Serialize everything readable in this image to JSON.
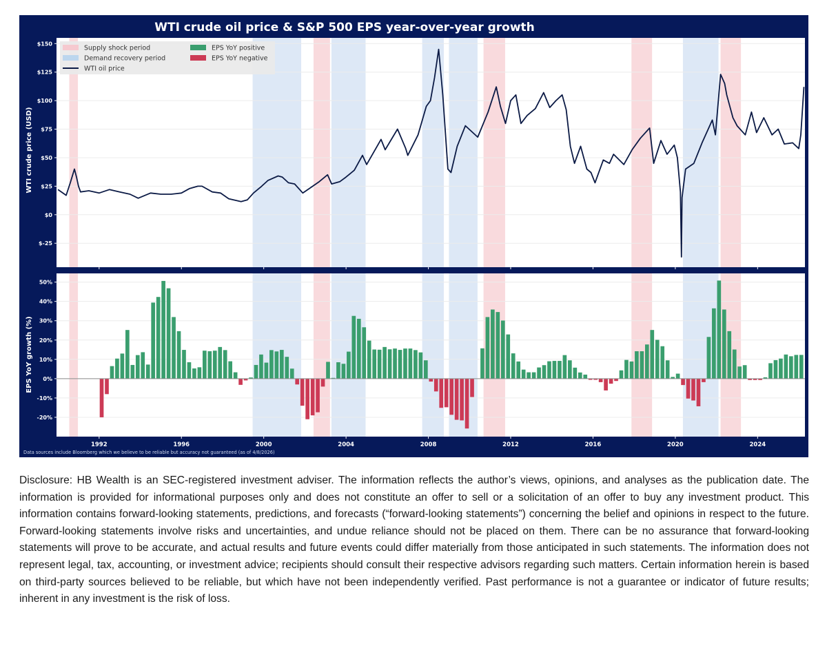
{
  "chart_data": [
    {
      "type": "line",
      "panel": "top",
      "title": "WTI crude oil price & S&P 500 EPS year-over-year growth",
      "ylabel": "WTI crude price (USD)",
      "ylim": [
        -46,
        155
      ],
      "xlim": [
        1989.93,
        2026.3
      ],
      "yticks": [
        150,
        125,
        100,
        75,
        50,
        25,
        0,
        -25
      ],
      "ytick_labels": [
        "$150",
        "$125",
        "$100",
        "$75",
        "$50",
        "$25",
        "$0",
        "$-25"
      ],
      "grid": true,
      "legend_position": "top-left",
      "legend": [
        {
          "label": "Supply shock period",
          "kind": "patch",
          "color": "#f6c9cf"
        },
        {
          "label": "Demand recovery period",
          "kind": "patch",
          "color": "#bcd6ee"
        },
        {
          "label": "WTI oil price",
          "kind": "line",
          "color": "#0b1a45"
        },
        {
          "label": "EPS YoY positive",
          "kind": "patch",
          "color": "#3a9e6e"
        },
        {
          "label": "EPS YoY negative",
          "kind": "patch",
          "color": "#cc3a55"
        }
      ],
      "series": [
        {
          "name": "WTI oil price",
          "color": "#0b1a45",
          "x": [
            1990.0,
            1990.4,
            1990.6,
            1990.8,
            1990.9,
            1991.0,
            1991.1,
            1991.5,
            1992.0,
            1992.5,
            1993.0,
            1993.5,
            1993.9,
            1994.5,
            1995.0,
            1995.5,
            1996.0,
            1996.4,
            1996.8,
            1997.0,
            1997.5,
            1997.9,
            1998.3,
            1998.9,
            1999.2,
            1999.5,
            1999.9,
            2000.2,
            2000.7,
            2000.9,
            2001.2,
            2001.5,
            2001.9,
            2002.3,
            2002.7,
            2003.1,
            2003.3,
            2003.7,
            2004.0,
            2004.4,
            2004.8,
            2005.0,
            2005.7,
            2005.9,
            2006.5,
            2006.9,
            2007.0,
            2007.5,
            2007.9,
            2008.1,
            2008.3,
            2008.5,
            2008.7,
            2008.95,
            2009.1,
            2009.4,
            2009.8,
            2010.4,
            2010.9,
            2011.3,
            2011.5,
            2011.75,
            2012.0,
            2012.25,
            2012.5,
            2012.8,
            2013.2,
            2013.6,
            2013.9,
            2014.2,
            2014.5,
            2014.7,
            2014.9,
            2015.1,
            2015.4,
            2015.7,
            2015.9,
            2016.1,
            2016.5,
            2016.8,
            2017.0,
            2017.5,
            2017.9,
            2018.3,
            2018.75,
            2018.95,
            2019.3,
            2019.6,
            2019.95,
            2020.1,
            2020.25,
            2020.3,
            2020.33,
            2020.5,
            2020.9,
            2021.3,
            2021.8,
            2021.95,
            2022.2,
            2022.4,
            2022.5,
            2022.8,
            2023.0,
            2023.4,
            2023.7,
            2023.95,
            2024.3,
            2024.7,
            2025.0,
            2025.3,
            2025.7,
            2026.0,
            2026.1,
            2026.25
          ],
          "y": [
            22,
            17,
            28,
            40,
            33,
            25,
            20,
            21,
            19,
            22,
            20,
            18,
            14.5,
            19,
            18,
            18,
            19,
            23,
            25,
            25,
            20,
            19,
            14,
            11.5,
            13,
            19,
            25,
            30,
            34,
            33,
            28,
            27,
            19,
            24,
            29,
            35,
            27,
            29,
            33,
            39,
            52,
            44,
            66,
            57,
            75,
            58,
            52,
            70,
            95,
            100,
            120,
            145,
            105,
            40,
            37,
            60,
            78,
            68,
            90,
            112,
            95,
            80,
            100,
            105,
            80,
            87,
            93,
            107,
            94,
            100,
            105,
            92,
            60,
            45,
            60,
            40,
            37,
            28,
            48,
            45,
            53,
            44,
            57,
            67,
            76,
            45,
            65,
            53,
            61,
            50,
            20,
            -37,
            15,
            40,
            45,
            63,
            83,
            70,
            123,
            115,
            105,
            85,
            78,
            70,
            90,
            72,
            85,
            70,
            75,
            62,
            63,
            58,
            70,
            112
          ]
        }
      ],
      "shaded_periods": [
        {
          "type": "Supply shock period",
          "start": 1990.55,
          "end": 1990.97
        },
        {
          "type": "Demand recovery period",
          "start": 1999.46,
          "end": 2001.82
        },
        {
          "type": "Supply shock period",
          "start": 2002.42,
          "end": 2003.22
        },
        {
          "type": "Demand recovery period",
          "start": 2003.29,
          "end": 2004.95
        },
        {
          "type": "Demand recovery period",
          "start": 2007.7,
          "end": 2008.75
        },
        {
          "type": "Demand recovery period",
          "start": 2009.0,
          "end": 2010.39
        },
        {
          "type": "Supply shock period",
          "start": 2010.68,
          "end": 2011.73
        },
        {
          "type": "Supply shock period",
          "start": 2017.87,
          "end": 2018.87
        },
        {
          "type": "Demand recovery period",
          "start": 2020.37,
          "end": 2022.1
        },
        {
          "type": "Supply shock period",
          "start": 2022.2,
          "end": 2023.19
        }
      ]
    },
    {
      "type": "bar",
      "panel": "bottom",
      "ylabel": "EPS YoY growth (%)",
      "ylim": [
        -30,
        54.5
      ],
      "xlim": [
        1989.93,
        2026.3
      ],
      "yticks": [
        50,
        40,
        30,
        20,
        10,
        0,
        -10,
        -20
      ],
      "ytick_labels": [
        "50%",
        "40%",
        "30%",
        "20%",
        "10%",
        "0%",
        "-10%",
        "-20%"
      ],
      "xticks": [
        1992,
        1996,
        2000,
        2004,
        2008,
        2012,
        2016,
        2020,
        2024
      ],
      "xtick_labels": [
        "1992",
        "1996",
        "2000",
        "2004",
        "2008",
        "2012",
        "2016",
        "2020",
        "2024"
      ],
      "grid": true,
      "frequency": "quarterly",
      "x_start": 1992.125,
      "x_step": 0.25,
      "positive_color": "#3a9e6e",
      "negative_color": "#cc3a55",
      "values": [
        -20,
        -8,
        6.5,
        10.4,
        13,
        25.2,
        7.1,
        12.2,
        13.7,
        7.3,
        39.4,
        42.3,
        50.6,
        46.8,
        31.9,
        24.6,
        14.9,
        8.5,
        5.3,
        5.9,
        14.5,
        14.2,
        14.5,
        16.4,
        14.8,
        9,
        3.3,
        -3.2,
        -0.9,
        0.6,
        7.1,
        12.5,
        8.3,
        14.8,
        14.1,
        14.9,
        11.3,
        5.2,
        -3,
        -14,
        -21,
        -19,
        -17.4,
        -4.1,
        8.7,
        0.4,
        8.5,
        7.7,
        14,
        32.5,
        31,
        26.6,
        19.7,
        15.1,
        15,
        16.4,
        15.2,
        15.6,
        14.9,
        15.6,
        15.6,
        14.8,
        13.6,
        9.5,
        -1.5,
        -6.6,
        -15.1,
        -14.8,
        -18.7,
        -21.3,
        -21.6,
        -25.8,
        -9.5,
        0,
        15.7,
        31.9,
        35.8,
        34.5,
        30.1,
        22.9,
        13.1,
        8.9,
        4.7,
        3.3,
        3.3,
        5.8,
        7,
        9,
        9.2,
        9.2,
        12.2,
        9.5,
        5.7,
        3.2,
        2.1,
        -0.6,
        -0.6,
        -1.8,
        -6.1,
        -2.6,
        -1.2,
        4.3,
        9.7,
        8.9,
        14.2,
        14.2,
        17.7,
        25.2,
        20.1,
        16.8,
        9.5,
        0.9,
        2.6,
        -3.3,
        -10.3,
        -11.3,
        -14.3,
        -1.8,
        21.6,
        36.4,
        50.8,
        35.8,
        24.6,
        15.1,
        6.3,
        7,
        -0.7,
        -0.7,
        -0.7,
        0.7,
        8,
        9.6,
        10.4,
        12.5,
        11.6,
        12.3,
        12.3
      ]
    }
  ],
  "colors": {
    "frame": "#06195a",
    "supply_shock": "#f9dadd",
    "demand_recovery": "#dde8f6",
    "grid": "#ececec"
  },
  "source_note": "Data sources include Bloomberg which we believe to be reliable but accuracy not guaranteed (as of 4/8/2026)",
  "disclosure": "Disclosure: HB Wealth is an SEC-registered investment adviser. The information reflects the author’s views, opinions, and analyses as the publication date. The information is provided for informational purposes only and does not constitute an offer to sell or a solicitation of an offer to buy any investment product. This information contains forward-looking statements, predictions, and forecasts (“forward-looking statements”) concerning the belief and opinions in respect to the future. Forward-looking statements involve risks and uncertainties, and undue reliance should not be placed on them. There can be no assurance that forward-looking statements will prove to be accurate, and actual results and future events could differ materially from those anticipated in such statements. The information does not represent legal, tax, accounting, or investment advice; recipients should consult their respective advisors regarding such matters. Certain information herein is based on third-party sources believed to be reliable, but which have not been independently verified. Past performance is not a guarantee or indicator of future results; inherent in any investment is the risk of loss."
}
